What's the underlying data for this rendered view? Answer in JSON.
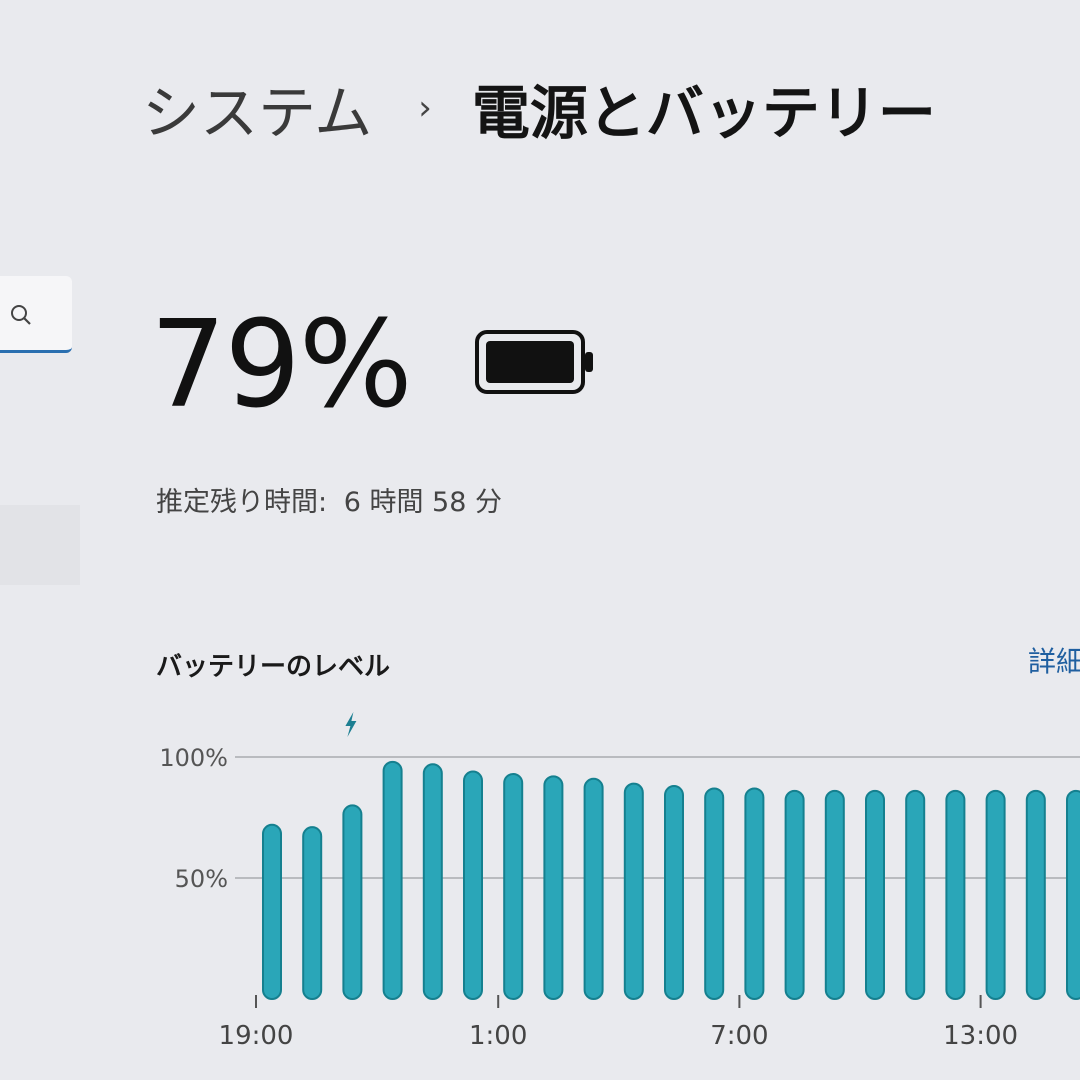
{
  "breadcrumb": {
    "parent": "システム",
    "separator": "›",
    "current": "電源とバッテリー"
  },
  "battery": {
    "percent_label": "79%",
    "percent": 79,
    "estimate_label": "推定残り時間:",
    "estimate_value": "6 時間 58 分"
  },
  "level": {
    "title": "バッテリーのレベル",
    "details_link": "詳細"
  },
  "colors": {
    "bar": "#2aa6b8",
    "bar_edge": "#15808f",
    "link": "#1f5fa0"
  },
  "chart_data": {
    "type": "bar",
    "ylim": [
      0,
      100
    ],
    "yticks": [
      "100%",
      "50%"
    ],
    "ytick_values": [
      100,
      50
    ],
    "xtick_labels": [
      "19:00",
      "1:00",
      "7:00",
      "13:00"
    ],
    "categories": [
      "19:00",
      "20:00",
      "21:00",
      "22:00",
      "23:00",
      "0:00",
      "1:00",
      "2:00",
      "3:00",
      "4:00",
      "5:00",
      "6:00",
      "7:00",
      "8:00",
      "9:00",
      "10:00",
      "11:00",
      "12:00",
      "13:00",
      "14:00",
      "15:00"
    ],
    "values": [
      72,
      71,
      80,
      98,
      97,
      94,
      93,
      92,
      91,
      89,
      88,
      87,
      87,
      86,
      86,
      86,
      86,
      86,
      86,
      86,
      86
    ],
    "charging_marker_at": "21:00",
    "grid": true
  }
}
